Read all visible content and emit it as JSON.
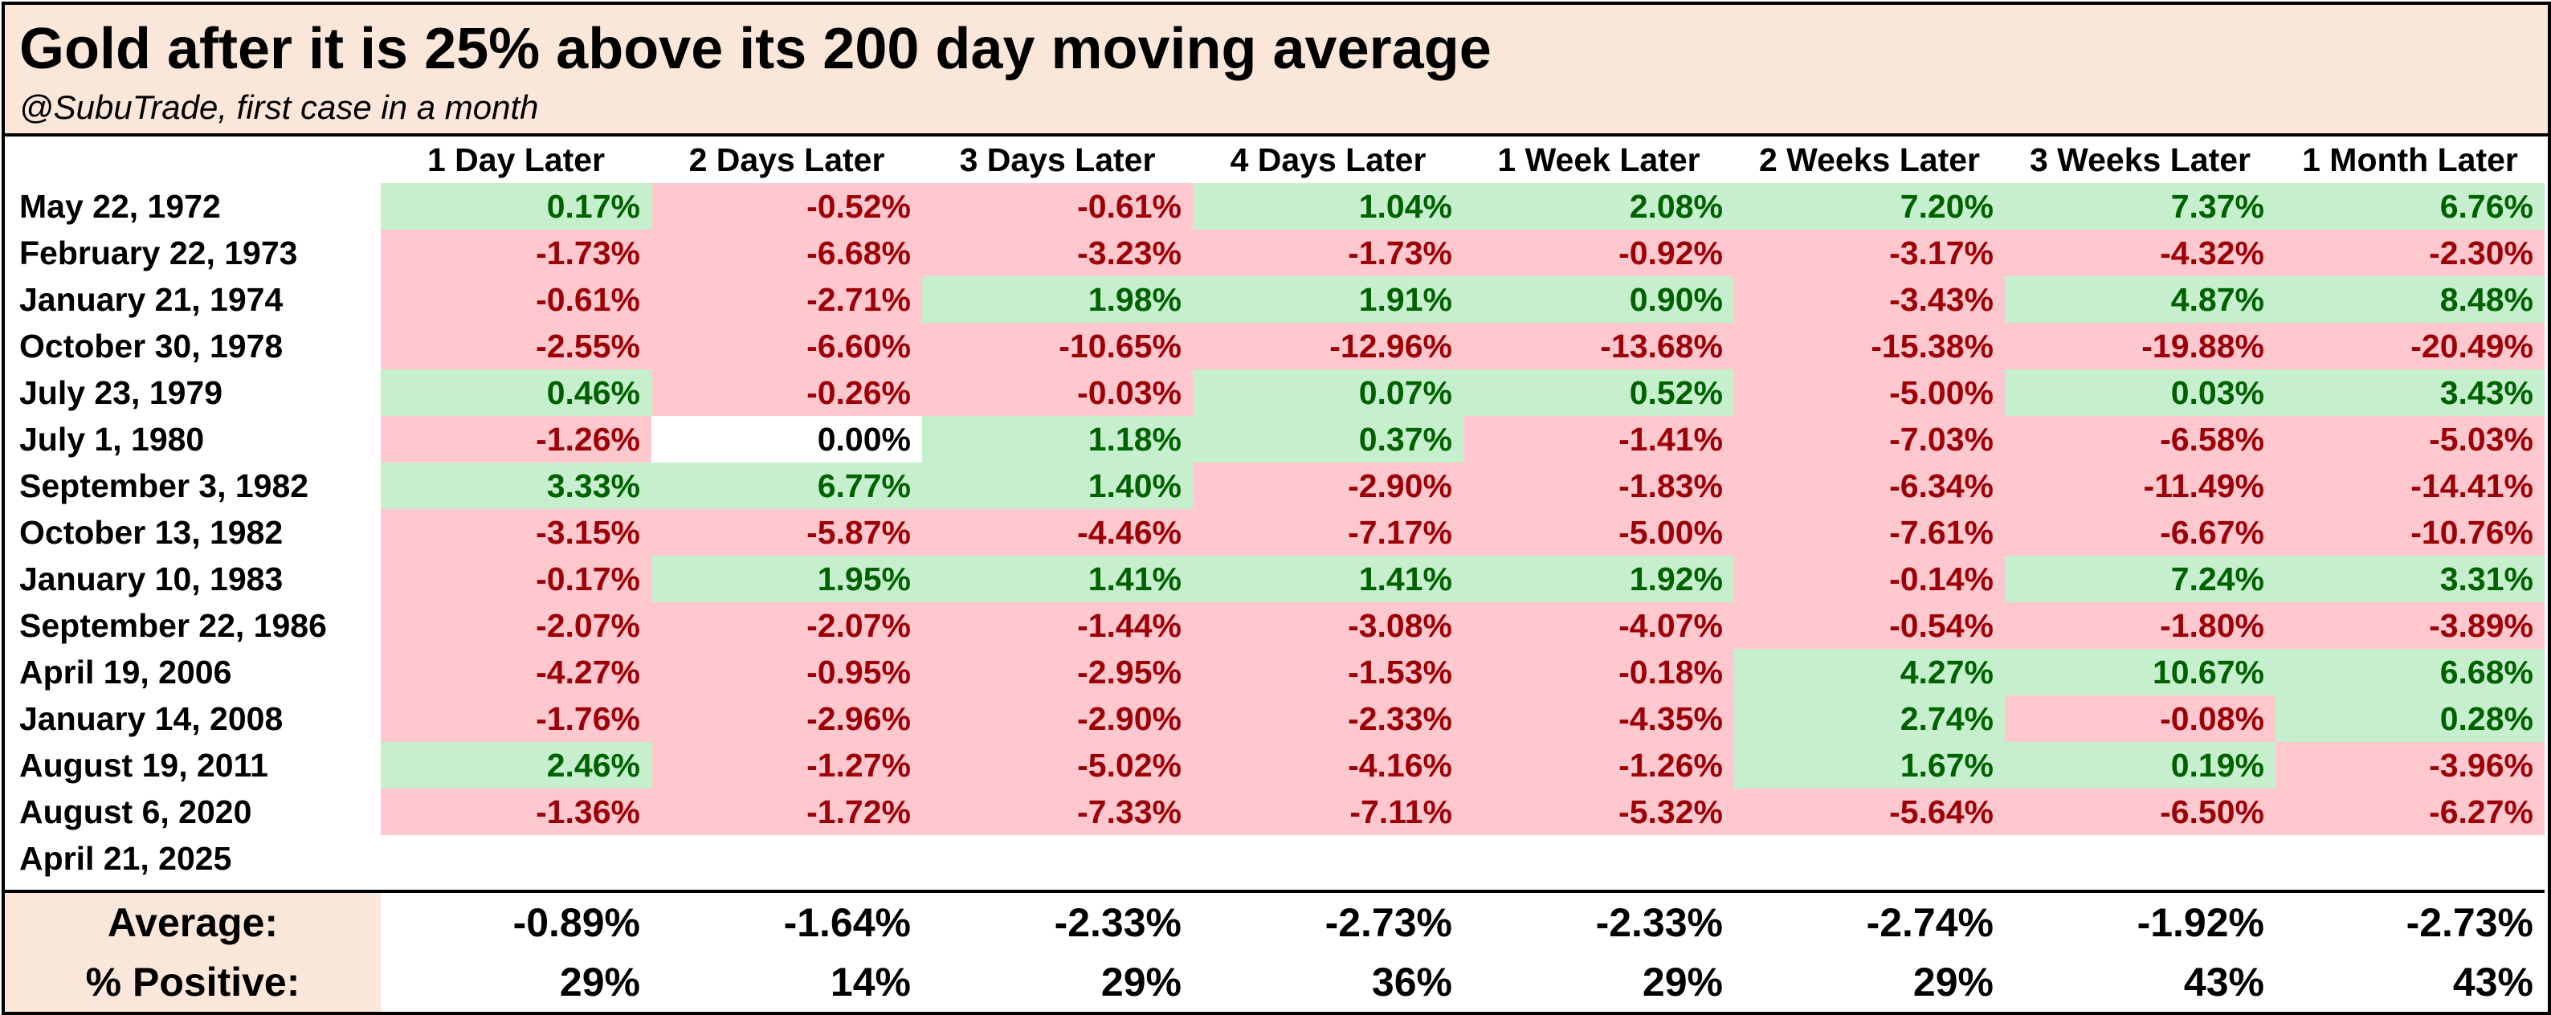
{
  "title": "Gold after it is 25% above its 200 day moving average",
  "subtitle": "@SubuTrade, first case in a month",
  "colors": {
    "header_bg": "#fbe7d9",
    "positive_bg": "#c6efce",
    "positive_text": "#006100",
    "negative_bg": "#ffc7ce",
    "negative_text": "#9c0006"
  },
  "chart_data": {
    "type": "table",
    "columns": [
      "1 Day Later",
      "2 Days Later",
      "3 Days Later",
      "4 Days Later",
      "1 Week Later",
      "2 Weeks Later",
      "3 Weeks Later",
      "1 Month Later"
    ],
    "rows": [
      {
        "date": "May 22, 1972",
        "values": [
          "0.17%",
          "-0.52%",
          "-0.61%",
          "1.04%",
          "2.08%",
          "7.20%",
          "7.37%",
          "6.76%"
        ]
      },
      {
        "date": "February 22, 1973",
        "values": [
          "-1.73%",
          "-6.68%",
          "-3.23%",
          "-1.73%",
          "-0.92%",
          "-3.17%",
          "-4.32%",
          "-2.30%"
        ]
      },
      {
        "date": "January 21, 1974",
        "values": [
          "-0.61%",
          "-2.71%",
          "1.98%",
          "1.91%",
          "0.90%",
          "-3.43%",
          "4.87%",
          "8.48%"
        ]
      },
      {
        "date": "October 30, 1978",
        "values": [
          "-2.55%",
          "-6.60%",
          "-10.65%",
          "-12.96%",
          "-13.68%",
          "-15.38%",
          "-19.88%",
          "-20.49%"
        ]
      },
      {
        "date": "July 23, 1979",
        "values": [
          "0.46%",
          "-0.26%",
          "-0.03%",
          "0.07%",
          "0.52%",
          "-5.00%",
          "0.03%",
          "3.43%"
        ]
      },
      {
        "date": "July 1, 1980",
        "values": [
          "-1.26%",
          "0.00%",
          "1.18%",
          "0.37%",
          "-1.41%",
          "-7.03%",
          "-6.58%",
          "-5.03%"
        ]
      },
      {
        "date": "September 3, 1982",
        "values": [
          "3.33%",
          "6.77%",
          "1.40%",
          "-2.90%",
          "-1.83%",
          "-6.34%",
          "-11.49%",
          "-14.41%"
        ]
      },
      {
        "date": "October 13, 1982",
        "values": [
          "-3.15%",
          "-5.87%",
          "-4.46%",
          "-7.17%",
          "-5.00%",
          "-7.61%",
          "-6.67%",
          "-10.76%"
        ]
      },
      {
        "date": "January 10, 1983",
        "values": [
          "-0.17%",
          "1.95%",
          "1.41%",
          "1.41%",
          "1.92%",
          "-0.14%",
          "7.24%",
          "3.31%"
        ]
      },
      {
        "date": "September 22, 1986",
        "values": [
          "-2.07%",
          "-2.07%",
          "-1.44%",
          "-3.08%",
          "-4.07%",
          "-0.54%",
          "-1.80%",
          "-3.89%"
        ]
      },
      {
        "date": "April 19, 2006",
        "values": [
          "-4.27%",
          "-0.95%",
          "-2.95%",
          "-1.53%",
          "-0.18%",
          "4.27%",
          "10.67%",
          "6.68%"
        ]
      },
      {
        "date": "January 14, 2008",
        "values": [
          "-1.76%",
          "-2.96%",
          "-2.90%",
          "-2.33%",
          "-4.35%",
          "2.74%",
          "-0.08%",
          "0.28%"
        ]
      },
      {
        "date": "August 19, 2011",
        "values": [
          "2.46%",
          "-1.27%",
          "-5.02%",
          "-4.16%",
          "-1.26%",
          "1.67%",
          "0.19%",
          "-3.96%"
        ]
      },
      {
        "date": "August 6, 2020",
        "values": [
          "-1.36%",
          "-1.72%",
          "-7.33%",
          "-7.11%",
          "-5.32%",
          "-5.64%",
          "-6.50%",
          "-6.27%"
        ]
      },
      {
        "date": "April 21, 2025",
        "values": [
          "",
          "",
          "",
          "",
          "",
          "",
          "",
          ""
        ]
      }
    ],
    "summary": [
      {
        "label": "Average:",
        "values": [
          "-0.89%",
          "-1.64%",
          "-2.33%",
          "-2.73%",
          "-2.33%",
          "-2.74%",
          "-1.92%",
          "-2.73%"
        ]
      },
      {
        "label": "% Positive:",
        "values": [
          "29%",
          "14%",
          "29%",
          "36%",
          "29%",
          "29%",
          "43%",
          "43%"
        ]
      }
    ]
  }
}
